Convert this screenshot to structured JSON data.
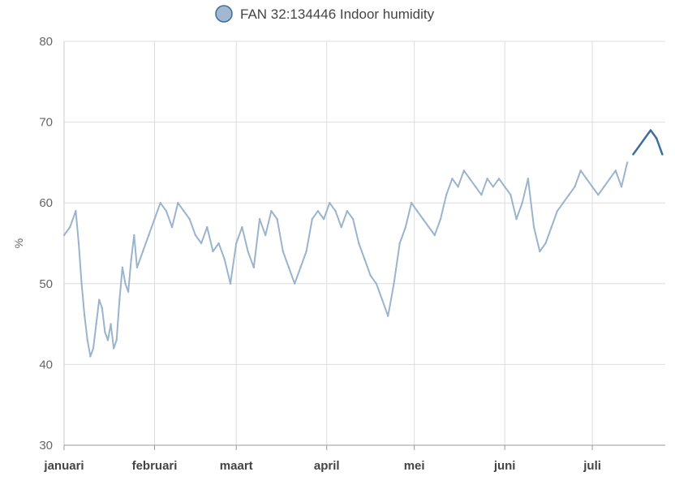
{
  "chart_data": {
    "type": "line",
    "title": "",
    "xlabel": "",
    "ylabel": "%",
    "ylim": [
      30,
      80
    ],
    "yticks": [
      30,
      40,
      50,
      60,
      70,
      80
    ],
    "xlim": [
      "2023-01-01",
      "2023-07-26"
    ],
    "month_ticks": [
      {
        "label": "januari",
        "date": "2023-01-01"
      },
      {
        "label": "februari",
        "date": "2023-02-01"
      },
      {
        "label": "maart",
        "date": "2023-03-01"
      },
      {
        "label": "april",
        "date": "2023-04-01"
      },
      {
        "label": "mei",
        "date": "2023-05-01"
      },
      {
        "label": "juni",
        "date": "2023-06-01"
      },
      {
        "label": "juli",
        "date": "2023-07-01"
      }
    ],
    "grid": true,
    "legend": {
      "position": "top-center",
      "marker_color": "#a3b8d0",
      "marker_stroke": "#3e6e9e"
    },
    "series": [
      {
        "name": "FAN 32:134446 Indoor humidity",
        "color": "#9bb4cd",
        "highlight_color": "#3e6e9e",
        "highlight_from": "2023-07-14",
        "x": [
          "2023-01-01",
          "2023-01-03",
          "2023-01-05",
          "2023-01-06",
          "2023-01-07",
          "2023-01-08",
          "2023-01-09",
          "2023-01-10",
          "2023-01-11",
          "2023-01-12",
          "2023-01-13",
          "2023-01-14",
          "2023-01-15",
          "2023-01-16",
          "2023-01-17",
          "2023-01-18",
          "2023-01-19",
          "2023-01-20",
          "2023-01-21",
          "2023-01-22",
          "2023-01-23",
          "2023-01-24",
          "2023-01-25",
          "2023-01-26",
          "2023-01-28",
          "2023-01-30",
          "2023-02-01",
          "2023-02-03",
          "2023-02-05",
          "2023-02-07",
          "2023-02-09",
          "2023-02-11",
          "2023-02-13",
          "2023-02-15",
          "2023-02-17",
          "2023-02-19",
          "2023-02-21",
          "2023-02-23",
          "2023-02-25",
          "2023-02-27",
          "2023-03-01",
          "2023-03-03",
          "2023-03-05",
          "2023-03-07",
          "2023-03-09",
          "2023-03-11",
          "2023-03-13",
          "2023-03-15",
          "2023-03-17",
          "2023-03-19",
          "2023-03-21",
          "2023-03-23",
          "2023-03-25",
          "2023-03-27",
          "2023-03-29",
          "2023-03-31",
          "2023-04-02",
          "2023-04-04",
          "2023-04-06",
          "2023-04-08",
          "2023-04-10",
          "2023-04-12",
          "2023-04-14",
          "2023-04-16",
          "2023-04-18",
          "2023-04-20",
          "2023-04-22",
          "2023-04-24",
          "2023-04-26",
          "2023-04-28",
          "2023-04-30",
          "2023-05-02",
          "2023-05-04",
          "2023-05-06",
          "2023-05-08",
          "2023-05-10",
          "2023-05-12",
          "2023-05-14",
          "2023-05-16",
          "2023-05-18",
          "2023-05-20",
          "2023-05-22",
          "2023-05-24",
          "2023-05-26",
          "2023-05-28",
          "2023-05-30",
          "2023-06-01",
          "2023-06-03",
          "2023-06-05",
          "2023-06-07",
          "2023-06-09",
          "2023-06-11",
          "2023-06-13",
          "2023-06-15",
          "2023-06-17",
          "2023-06-19",
          "2023-06-21",
          "2023-06-23",
          "2023-06-25",
          "2023-06-27",
          "2023-06-29",
          "2023-07-01",
          "2023-07-03",
          "2023-07-05",
          "2023-07-07",
          "2023-07-09",
          "2023-07-11",
          "2023-07-13",
          "2023-07-15",
          "2023-07-17",
          "2023-07-19",
          "2023-07-21",
          "2023-07-23",
          "2023-07-25"
        ],
        "y": [
          56,
          57,
          59,
          55,
          50,
          46,
          43,
          41,
          42,
          45,
          48,
          47,
          44,
          43,
          45,
          42,
          43,
          48,
          52,
          50,
          49,
          53,
          56,
          52,
          54,
          56,
          58,
          60,
          59,
          57,
          60,
          59,
          58,
          56,
          55,
          57,
          54,
          55,
          53,
          50,
          55,
          57,
          54,
          52,
          58,
          56,
          59,
          58,
          54,
          52,
          50,
          52,
          54,
          58,
          59,
          58,
          60,
          59,
          57,
          59,
          58,
          55,
          53,
          51,
          50,
          48,
          46,
          50,
          55,
          57,
          60,
          59,
          58,
          57,
          56,
          58,
          61,
          63,
          62,
          64,
          63,
          62,
          61,
          63,
          62,
          63,
          62,
          61,
          58,
          60,
          63,
          57,
          54,
          55,
          57,
          59,
          60,
          61,
          62,
          64,
          63,
          62,
          61,
          62,
          63,
          64,
          62,
          65,
          66,
          67,
          68,
          69,
          68,
          66
        ]
      }
    ]
  }
}
